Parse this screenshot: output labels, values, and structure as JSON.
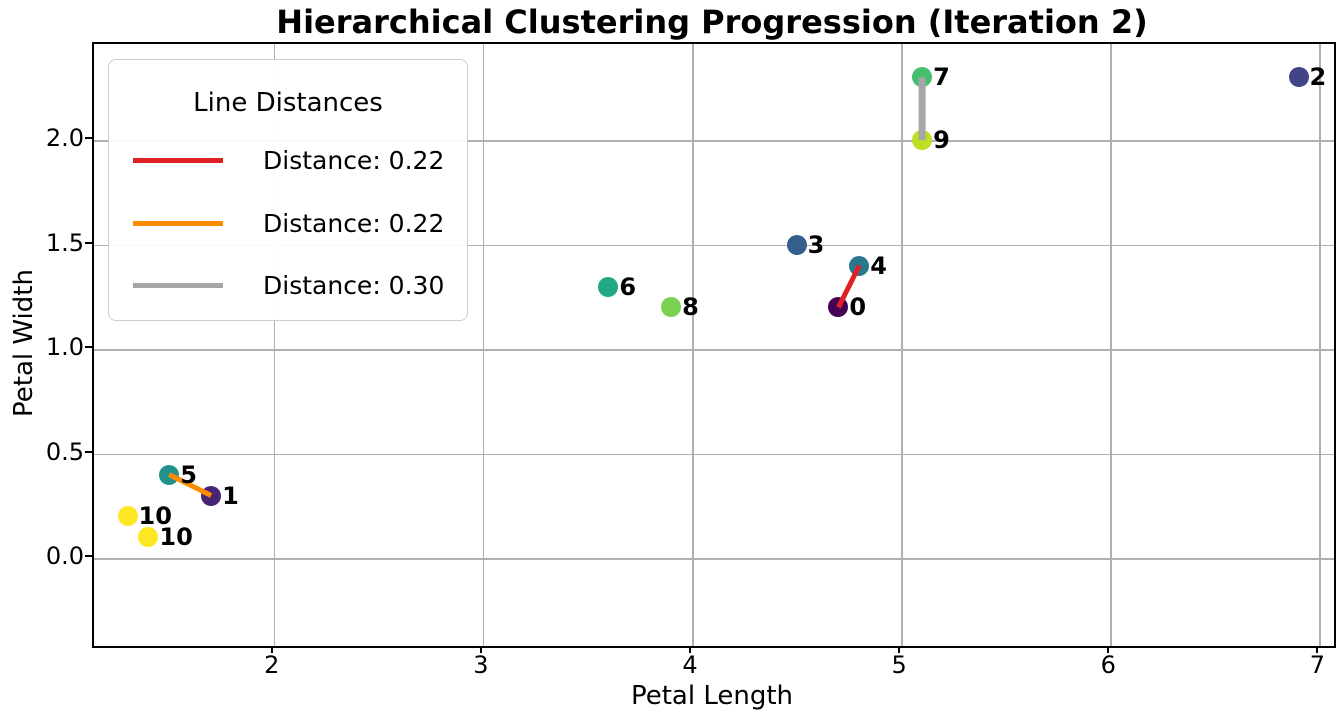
{
  "chart_data": {
    "type": "scatter",
    "title": "Hierarchical Clustering Progression (Iteration 2)",
    "xlabel": "Petal Length",
    "ylabel": "Petal Width",
    "xlim": [
      1.14,
      7.07
    ],
    "ylim": [
      -0.42,
      2.46
    ],
    "xticks": [
      "2",
      "3",
      "4",
      "5",
      "6",
      "7"
    ],
    "xtick_values": [
      2,
      3,
      4,
      5,
      6,
      7
    ],
    "yticks": [
      "0.0",
      "0.5",
      "1.0",
      "1.5",
      "2.0"
    ],
    "ytick_values": [
      0,
      0.5,
      1,
      1.5,
      2
    ],
    "grid": true,
    "grid_color": "#b0b0b0",
    "legend": {
      "title": "Line Distances",
      "position": "upper-left"
    },
    "points": [
      {
        "label": "0",
        "x": 4.7,
        "y": 1.2,
        "color": "#440154"
      },
      {
        "label": "1",
        "x": 1.7,
        "y": 0.3,
        "color": "#482475"
      },
      {
        "label": "2",
        "x": 6.9,
        "y": 2.3,
        "color": "#414487"
      },
      {
        "label": "3",
        "x": 4.5,
        "y": 1.5,
        "color": "#345f8d"
      },
      {
        "label": "4",
        "x": 4.8,
        "y": 1.4,
        "color": "#2a788e"
      },
      {
        "label": "5",
        "x": 1.5,
        "y": 0.4,
        "color": "#21918c"
      },
      {
        "label": "6",
        "x": 3.6,
        "y": 1.3,
        "color": "#22a884"
      },
      {
        "label": "7",
        "x": 5.1,
        "y": 2.3,
        "color": "#44bf70"
      },
      {
        "label": "8",
        "x": 3.9,
        "y": 1.2,
        "color": "#7ad151"
      },
      {
        "label": "9",
        "x": 5.1,
        "y": 2.0,
        "color": "#bddf26"
      },
      {
        "label": "10",
        "x": 1.3,
        "y": 0.2,
        "color": "#fde725"
      },
      {
        "label": "10",
        "x": 1.4,
        "y": 0.1,
        "color": "#fde725"
      }
    ],
    "lines": [
      {
        "label": "Distance: 0.22",
        "color": "#df2126",
        "width": 5,
        "x1": 4.7,
        "y1": 1.2,
        "x2": 4.8,
        "y2": 1.4
      },
      {
        "label": "Distance: 0.22",
        "color": "#ff8c00",
        "width": 5,
        "x1": 1.5,
        "y1": 0.4,
        "x2": 1.7,
        "y2": 0.3
      },
      {
        "label": "Distance: 0.30",
        "color": "#a6a6a6",
        "width": 7,
        "x1": 5.1,
        "y1": 2.3,
        "x2": 5.1,
        "y2": 2.0
      }
    ]
  }
}
